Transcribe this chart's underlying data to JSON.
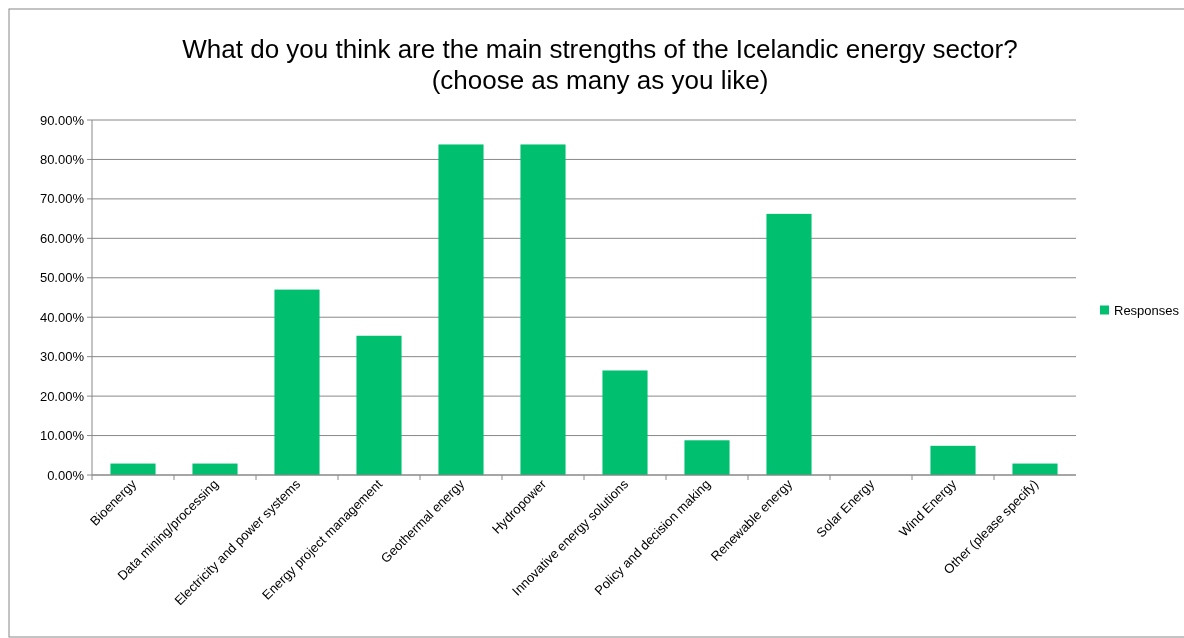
{
  "chart_data": {
    "type": "bar",
    "title": "What do you think are the main strengths of the Icelandic energy sector?\n(choose as many as you like)",
    "categories": [
      "Bioenergy",
      "Data mining/processing",
      "Electricity and power systems",
      "Energy project management",
      "Geothermal energy",
      "Hydropower",
      "Innovative energy solutions",
      "Policy and decision making",
      "Renewable energy",
      "Solar Energy",
      "Wind Energy",
      "Other (please specify)"
    ],
    "series": [
      {
        "name": "Responses",
        "color": "#00bf6f",
        "values": [
          2.9,
          2.9,
          47.0,
          35.3,
          83.8,
          83.8,
          26.5,
          8.8,
          66.2,
          0,
          7.4,
          2.9
        ]
      }
    ],
    "ylim": [
      0,
      90
    ],
    "yticks": [
      {
        "value": 0,
        "label": "0.00%"
      },
      {
        "value": 10,
        "label": "10.00%"
      },
      {
        "value": 20,
        "label": "20.00%"
      },
      {
        "value": 30,
        "label": "30.00%"
      },
      {
        "value": 40,
        "label": "40.00%"
      },
      {
        "value": 50,
        "label": "50.00%"
      },
      {
        "value": 60,
        "label": "60.00%"
      },
      {
        "value": 70,
        "label": "70.00%"
      },
      {
        "value": 80,
        "label": "80.00%"
      },
      {
        "value": 90,
        "label": "90.00%"
      }
    ],
    "grid": "y",
    "legend": "right"
  }
}
